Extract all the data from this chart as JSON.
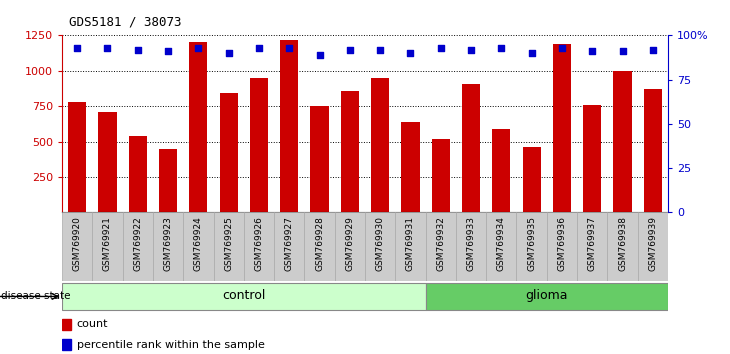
{
  "title": "GDS5181 / 38073",
  "samples": [
    "GSM769920",
    "GSM769921",
    "GSM769922",
    "GSM769923",
    "GSM769924",
    "GSM769925",
    "GSM769926",
    "GSM769927",
    "GSM769928",
    "GSM769929",
    "GSM769930",
    "GSM769931",
    "GSM769932",
    "GSM769933",
    "GSM769934",
    "GSM769935",
    "GSM769936",
    "GSM769937",
    "GSM769938",
    "GSM769939"
  ],
  "counts": [
    780,
    710,
    540,
    450,
    1200,
    840,
    950,
    1220,
    750,
    860,
    950,
    640,
    520,
    910,
    590,
    460,
    1190,
    760,
    1000,
    870
  ],
  "percentile_ranks": [
    93,
    93,
    92,
    91,
    93,
    90,
    93,
    93,
    89,
    92,
    92,
    90,
    93,
    92,
    93,
    90,
    93,
    91,
    91,
    92
  ],
  "control_count": 12,
  "glioma_count": 8,
  "bar_color": "#cc0000",
  "dot_color": "#0000cc",
  "control_color": "#ccffcc",
  "glioma_color": "#66cc66",
  "xtick_bg_color": "#cccccc",
  "ylim_left": [
    0,
    1250
  ],
  "ylim_right": [
    0,
    100
  ],
  "yticks_left": [
    250,
    500,
    750,
    1000,
    1250
  ],
  "yticks_right": [
    0,
    25,
    50,
    75,
    100
  ],
  "legend_count_label": "count",
  "legend_pct_label": "percentile rank within the sample"
}
